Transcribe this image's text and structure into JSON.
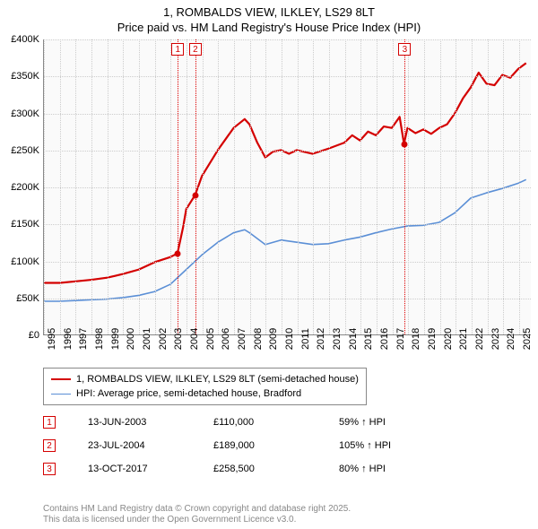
{
  "title": {
    "line1": "1, ROMBALDS VIEW, ILKLEY, LS29 8LT",
    "line2": "Price paid vs. HM Land Registry's House Price Index (HPI)"
  },
  "chart": {
    "type": "line",
    "background_color": "#fafafa",
    "grid_color": "#cccccc",
    "axis_color": "#888888",
    "ylim": [
      0,
      400000
    ],
    "ytick_step": 50000,
    "yticks": [
      {
        "v": 0,
        "label": "£0"
      },
      {
        "v": 50000,
        "label": "£50K"
      },
      {
        "v": 100000,
        "label": "£100K"
      },
      {
        "v": 150000,
        "label": "£150K"
      },
      {
        "v": 200000,
        "label": "£200K"
      },
      {
        "v": 250000,
        "label": "£250K"
      },
      {
        "v": 300000,
        "label": "£300K"
      },
      {
        "v": 350000,
        "label": "£350K"
      },
      {
        "v": 400000,
        "label": "£400K"
      }
    ],
    "xlim": [
      1995,
      2025.8
    ],
    "xticks": [
      1995,
      1996,
      1997,
      1998,
      1999,
      2000,
      2001,
      2002,
      2003,
      2004,
      2005,
      2006,
      2007,
      2008,
      2009,
      2010,
      2011,
      2012,
      2013,
      2014,
      2015,
      2016,
      2017,
      2018,
      2019,
      2020,
      2021,
      2022,
      2023,
      2024,
      2025
    ],
    "series": [
      {
        "name": "property",
        "label": "1, ROMBALDS VIEW, ILKLEY, LS29 8LT (semi-detached house)",
        "color": "#d40000",
        "line_width": 2.2,
        "data": [
          [
            1995,
            70000
          ],
          [
            1996,
            70000
          ],
          [
            1997,
            72000
          ],
          [
            1998,
            74000
          ],
          [
            1999,
            77000
          ],
          [
            2000,
            82000
          ],
          [
            2001,
            88000
          ],
          [
            2002,
            98000
          ],
          [
            2003,
            105000
          ],
          [
            2003.45,
            110000
          ],
          [
            2003.8,
            145000
          ],
          [
            2004,
            170000
          ],
          [
            2004.56,
            189000
          ],
          [
            2005,
            215000
          ],
          [
            2006,
            250000
          ],
          [
            2007,
            280000
          ],
          [
            2007.7,
            292000
          ],
          [
            2008,
            285000
          ],
          [
            2008.5,
            260000
          ],
          [
            2009,
            240000
          ],
          [
            2009.5,
            248000
          ],
          [
            2010,
            250000
          ],
          [
            2010.5,
            245000
          ],
          [
            2011,
            250000
          ],
          [
            2012,
            245000
          ],
          [
            2013,
            252000
          ],
          [
            2014,
            260000
          ],
          [
            2014.5,
            270000
          ],
          [
            2015,
            263000
          ],
          [
            2015.5,
            275000
          ],
          [
            2016,
            270000
          ],
          [
            2016.5,
            282000
          ],
          [
            2017,
            280000
          ],
          [
            2017.5,
            295000
          ],
          [
            2017.78,
            258500
          ],
          [
            2018,
            280000
          ],
          [
            2018.5,
            273000
          ],
          [
            2019,
            278000
          ],
          [
            2019.5,
            272000
          ],
          [
            2020,
            280000
          ],
          [
            2020.5,
            285000
          ],
          [
            2021,
            300000
          ],
          [
            2021.5,
            320000
          ],
          [
            2022,
            335000
          ],
          [
            2022.5,
            355000
          ],
          [
            2023,
            340000
          ],
          [
            2023.5,
            338000
          ],
          [
            2024,
            352000
          ],
          [
            2024.5,
            348000
          ],
          [
            2025,
            360000
          ],
          [
            2025.5,
            368000
          ]
        ]
      },
      {
        "name": "hpi",
        "label": "HPI: Average price, semi-detached house, Bradford",
        "color": "#5b8fd6",
        "line_width": 1.6,
        "data": [
          [
            1995,
            45000
          ],
          [
            1996,
            45000
          ],
          [
            1997,
            46000
          ],
          [
            1998,
            47000
          ],
          [
            1999,
            48000
          ],
          [
            2000,
            50000
          ],
          [
            2001,
            53000
          ],
          [
            2002,
            58000
          ],
          [
            2003,
            68000
          ],
          [
            2004,
            88000
          ],
          [
            2005,
            108000
          ],
          [
            2006,
            125000
          ],
          [
            2007,
            138000
          ],
          [
            2007.7,
            142000
          ],
          [
            2008,
            138000
          ],
          [
            2009,
            122000
          ],
          [
            2010,
            128000
          ],
          [
            2011,
            125000
          ],
          [
            2012,
            122000
          ],
          [
            2013,
            123000
          ],
          [
            2014,
            128000
          ],
          [
            2015,
            132000
          ],
          [
            2016,
            138000
          ],
          [
            2017,
            143000
          ],
          [
            2018,
            147000
          ],
          [
            2019,
            148000
          ],
          [
            2020,
            152000
          ],
          [
            2021,
            165000
          ],
          [
            2022,
            185000
          ],
          [
            2023,
            192000
          ],
          [
            2024,
            198000
          ],
          [
            2025,
            205000
          ],
          [
            2025.5,
            210000
          ]
        ]
      }
    ],
    "sale_markers": [
      {
        "n": "1",
        "x": 2003.45,
        "y": 110000,
        "color": "#d40000"
      },
      {
        "n": "2",
        "x": 2004.56,
        "y": 189000,
        "color": "#d40000"
      },
      {
        "n": "3",
        "x": 2017.78,
        "y": 258500,
        "color": "#d40000"
      }
    ]
  },
  "legend": {
    "items": [
      {
        "color": "#d40000",
        "width": 2.2,
        "label": "1, ROMBALDS VIEW, ILKLEY, LS29 8LT (semi-detached house)"
      },
      {
        "color": "#5b8fd6",
        "width": 1.6,
        "label": "HPI: Average price, semi-detached house, Bradford"
      }
    ]
  },
  "sales": [
    {
      "n": "1",
      "date": "13-JUN-2003",
      "price": "£110,000",
      "pct": "59% ↑ HPI"
    },
    {
      "n": "2",
      "date": "23-JUL-2004",
      "price": "£189,000",
      "pct": "105% ↑ HPI"
    },
    {
      "n": "3",
      "date": "13-OCT-2017",
      "price": "£258,500",
      "pct": "80% ↑ HPI"
    }
  ],
  "footer": {
    "line1": "Contains HM Land Registry data © Crown copyright and database right 2025.",
    "line2": "This data is licensed under the Open Government Licence v3.0."
  },
  "marker_box_color": "#d40000"
}
